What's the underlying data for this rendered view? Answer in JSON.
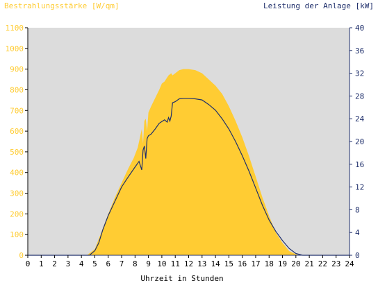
{
  "chart_data": {
    "type": "area",
    "left_axis_title": "Bestrahlungsstärke [W/qm]",
    "right_axis_title": "Leistung der Anlage [kW]",
    "x_title": "Uhrzeit in Stunden",
    "x_ticks": [
      "0",
      "1",
      "2",
      "3",
      "4",
      "5",
      "6",
      "7",
      "8",
      "9",
      "10",
      "11",
      "12",
      "13",
      "14",
      "15",
      "16",
      "17",
      "18",
      "19",
      "20",
      "21",
      "22",
      "23",
      "24"
    ],
    "y_left_ticks": [
      "0",
      "100",
      "200",
      "300",
      "400",
      "500",
      "600",
      "700",
      "800",
      "900",
      "1000",
      "1100"
    ],
    "y_right_ticks": [
      "0",
      "4",
      "8",
      "12",
      "16",
      "20",
      "24",
      "28",
      "32",
      "36",
      "40"
    ],
    "xlim": [
      0,
      24
    ],
    "ylim_left": [
      0,
      1100
    ],
    "ylim_right": [
      0,
      40
    ],
    "grid": false,
    "colors": {
      "plot_background": "#dcdcdc",
      "irradiance_fill": "#ffcc33",
      "power_line": "#1f2f6b",
      "left_axis_text": "#ffcc33",
      "right_axis_text": "#1f2f6b",
      "x_axis_text": "#000000"
    },
    "series": [
      {
        "axis": "left",
        "style": "area",
        "x": [
          0,
          4.4,
          5.0,
          5.3,
          5.6,
          6.0,
          6.5,
          7.0,
          7.5,
          7.9,
          8.2,
          8.4,
          8.5,
          8.6,
          8.7,
          8.8,
          8.9,
          9.0,
          9.2,
          9.5,
          9.8,
          10.0,
          10.2,
          10.4,
          10.5,
          10.6,
          10.7,
          10.8,
          11.0,
          11.3,
          11.6,
          12.0,
          12.5,
          13.0,
          13.5,
          14.0,
          14.5,
          15.0,
          15.5,
          16.0,
          16.5,
          17.0,
          17.5,
          18.0,
          18.5,
          19.0,
          19.5,
          20.0,
          20.3,
          20.6,
          21.0,
          24
        ],
        "y": [
          0,
          0,
          30,
          80,
          130,
          200,
          280,
          350,
          420,
          470,
          520,
          580,
          610,
          540,
          650,
          660,
          600,
          690,
          720,
          760,
          800,
          830,
          840,
          860,
          870,
          875,
          880,
          870,
          880,
          895,
          900,
          900,
          895,
          880,
          850,
          820,
          780,
          720,
          650,
          570,
          480,
          380,
          280,
          190,
          110,
          60,
          20,
          5,
          0,
          0,
          0,
          0
        ]
      },
      {
        "axis": "right",
        "style": "line",
        "x": [
          0,
          4.6,
          5.0,
          5.3,
          5.6,
          6.0,
          6.5,
          7.0,
          7.5,
          8.0,
          8.3,
          8.5,
          8.6,
          8.7,
          8.8,
          8.9,
          9.0,
          9.2,
          9.5,
          9.8,
          10.0,
          10.2,
          10.4,
          10.5,
          10.6,
          10.7,
          10.8,
          11.0,
          11.3,
          11.6,
          12.0,
          12.5,
          13.0,
          13.5,
          14.0,
          14.5,
          15.0,
          15.5,
          16.0,
          16.5,
          17.0,
          17.5,
          18.0,
          18.5,
          19.0,
          19.5,
          20.0,
          20.5,
          21.0,
          24
        ],
        "y": [
          0,
          0,
          0.8,
          2.2,
          4.5,
          7,
          9.5,
          12,
          13.8,
          15.5,
          16.5,
          15,
          18.5,
          19.2,
          17,
          20.5,
          21,
          21.3,
          22.2,
          23.2,
          23.5,
          23.8,
          23.4,
          24.2,
          23.6,
          24.5,
          26.8,
          27,
          27.5,
          27.6,
          27.6,
          27.5,
          27.3,
          26.5,
          25.5,
          24,
          22.2,
          20,
          17.5,
          14.8,
          11.8,
          8.8,
          6.2,
          4.2,
          2.6,
          1.2,
          0.3,
          0,
          0,
          0
        ]
      }
    ]
  }
}
